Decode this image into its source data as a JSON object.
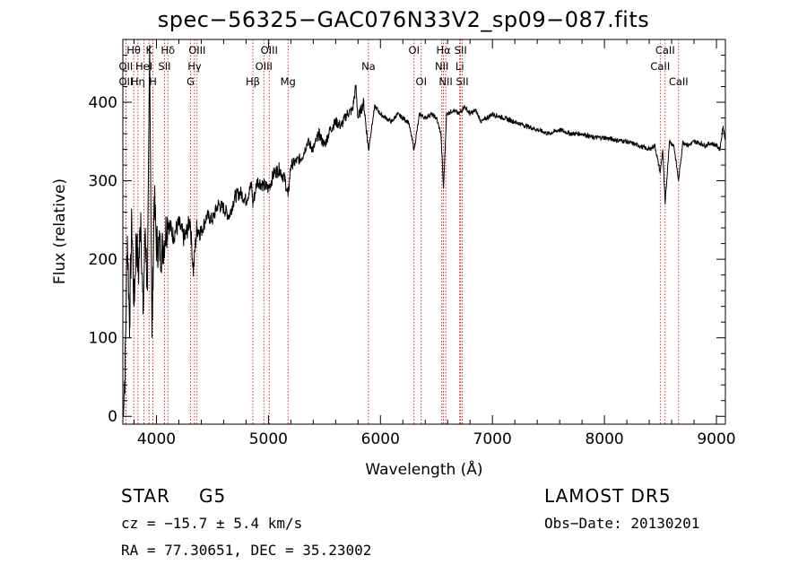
{
  "header": {
    "title": "spec−56325−GAC076N33V2_sp09−087.fits"
  },
  "footer": {
    "object_class": "STAR",
    "subclass": "G5",
    "survey": "LAMOST DR5",
    "velocity": "cz = −15.7 ± 5.4 km/s",
    "obs_date": "Obs−Date: 20130201",
    "coords": "RA =  77.30651, DEC =  35.23002"
  },
  "chart_data": {
    "type": "line",
    "xlabel": "Wavelength (Å)",
    "ylabel": "Flux (relative)",
    "xlim": [
      3700,
      9080
    ],
    "ylim": [
      -10,
      480
    ],
    "x_ticks": [
      4000,
      5000,
      6000,
      7000,
      8000,
      9000
    ],
    "y_ticks": [
      0,
      100,
      200,
      300,
      400
    ],
    "x_minor_step": 200,
    "y_minor_step": 20,
    "line_color": "#000000",
    "marker_color": "#cc0000",
    "line_markers": [
      {
        "label": "Hθ",
        "x": 3797,
        "row": 0
      },
      {
        "label": "K",
        "x": 3934,
        "row": 0
      },
      {
        "label": "Hδ",
        "x": 4102,
        "row": 0
      },
      {
        "label": "OIII",
        "x": 4363,
        "row": 0
      },
      {
        "label": "OIII",
        "x": 5007,
        "row": 0
      },
      {
        "label": "OI",
        "x": 6300,
        "row": 0
      },
      {
        "label": "Hα",
        "x": 6563,
        "row": 0
      },
      {
        "label": "SII",
        "x": 6716,
        "row": 0
      },
      {
        "label": "CaII",
        "x": 8542,
        "row": 0
      },
      {
        "label": "OII",
        "x": 3727,
        "row": 1
      },
      {
        "label": "HeI",
        "x": 3889,
        "row": 1
      },
      {
        "label": "SII",
        "x": 4072,
        "row": 1
      },
      {
        "label": "Hγ",
        "x": 4340,
        "row": 1
      },
      {
        "label": "OIII",
        "x": 4959,
        "row": 1
      },
      {
        "label": "Na",
        "x": 5893,
        "row": 1
      },
      {
        "label": "NII",
        "x": 6548,
        "row": 1
      },
      {
        "label": "Li",
        "x": 6708,
        "row": 1
      },
      {
        "label": "CaII",
        "x": 8498,
        "row": 1
      },
      {
        "label": "OII",
        "x": 3727,
        "row": 2
      },
      {
        "label": "Hη",
        "x": 3835,
        "row": 2
      },
      {
        "label": "H",
        "x": 3969,
        "row": 2
      },
      {
        "label": "G",
        "x": 4305,
        "row": 2
      },
      {
        "label": "Hβ",
        "x": 4861,
        "row": 2
      },
      {
        "label": "Mg",
        "x": 5175,
        "row": 2
      },
      {
        "label": "OI",
        "x": 6364,
        "row": 2
      },
      {
        "label": "NII",
        "x": 6583,
        "row": 2
      },
      {
        "label": "SII",
        "x": 6731,
        "row": 2
      },
      {
        "label": "CaII",
        "x": 8662,
        "row": 2
      }
    ],
    "series": [
      {
        "x": [
          3700,
          3720,
          3740,
          3760,
          3780,
          3800,
          3820,
          3840,
          3860,
          3880,
          3900,
          3920,
          3940,
          3960,
          3980,
          4000,
          4050,
          4100,
          4150,
          4200,
          4250,
          4300,
          4330,
          4360,
          4400,
          4450,
          4500,
          4550,
          4600,
          4650,
          4700,
          4750,
          4800,
          4850,
          4861,
          4900,
          4950,
          5000,
          5050,
          5100,
          5150,
          5175,
          5200,
          5250,
          5300,
          5350,
          5400,
          5450,
          5500,
          5550,
          5600,
          5650,
          5700,
          5750,
          5780,
          5800,
          5850,
          5893,
          5950,
          6000,
          6050,
          6100,
          6150,
          6200,
          6250,
          6300,
          6350,
          6400,
          6450,
          6500,
          6540,
          6563,
          6590,
          6650,
          6700,
          6750,
          6800,
          6850,
          6900,
          7000,
          7100,
          7200,
          7300,
          7400,
          7500,
          7600,
          7700,
          7800,
          7900,
          8000,
          8100,
          8200,
          8300,
          8400,
          8450,
          8498,
          8520,
          8542,
          8580,
          8620,
          8662,
          8700,
          8750,
          8800,
          8850,
          8900,
          8950,
          9000,
          9030,
          9060,
          9080
        ],
        "y": [
          0,
          60,
          230,
          120,
          250,
          140,
          230,
          180,
          260,
          130,
          240,
          160,
          470,
          100,
          280,
          220,
          210,
          250,
          230,
          245,
          225,
          250,
          185,
          240,
          235,
          255,
          250,
          270,
          265,
          255,
          280,
          285,
          275,
          295,
          270,
          300,
          295,
          290,
          310,
          315,
          300,
          280,
          320,
          325,
          330,
          350,
          340,
          360,
          345,
          365,
          375,
          370,
          385,
          390,
          420,
          380,
          400,
          340,
          395,
          385,
          380,
          375,
          385,
          380,
          375,
          340,
          385,
          380,
          385,
          380,
          360,
          290,
          385,
          390,
          385,
          395,
          385,
          390,
          375,
          385,
          380,
          375,
          370,
          365,
          360,
          365,
          360,
          360,
          355,
          355,
          352,
          350,
          345,
          340,
          345,
          310,
          340,
          270,
          350,
          345,
          300,
          350,
          345,
          350,
          348,
          345,
          348,
          345,
          340,
          370,
          350
        ]
      }
    ]
  }
}
